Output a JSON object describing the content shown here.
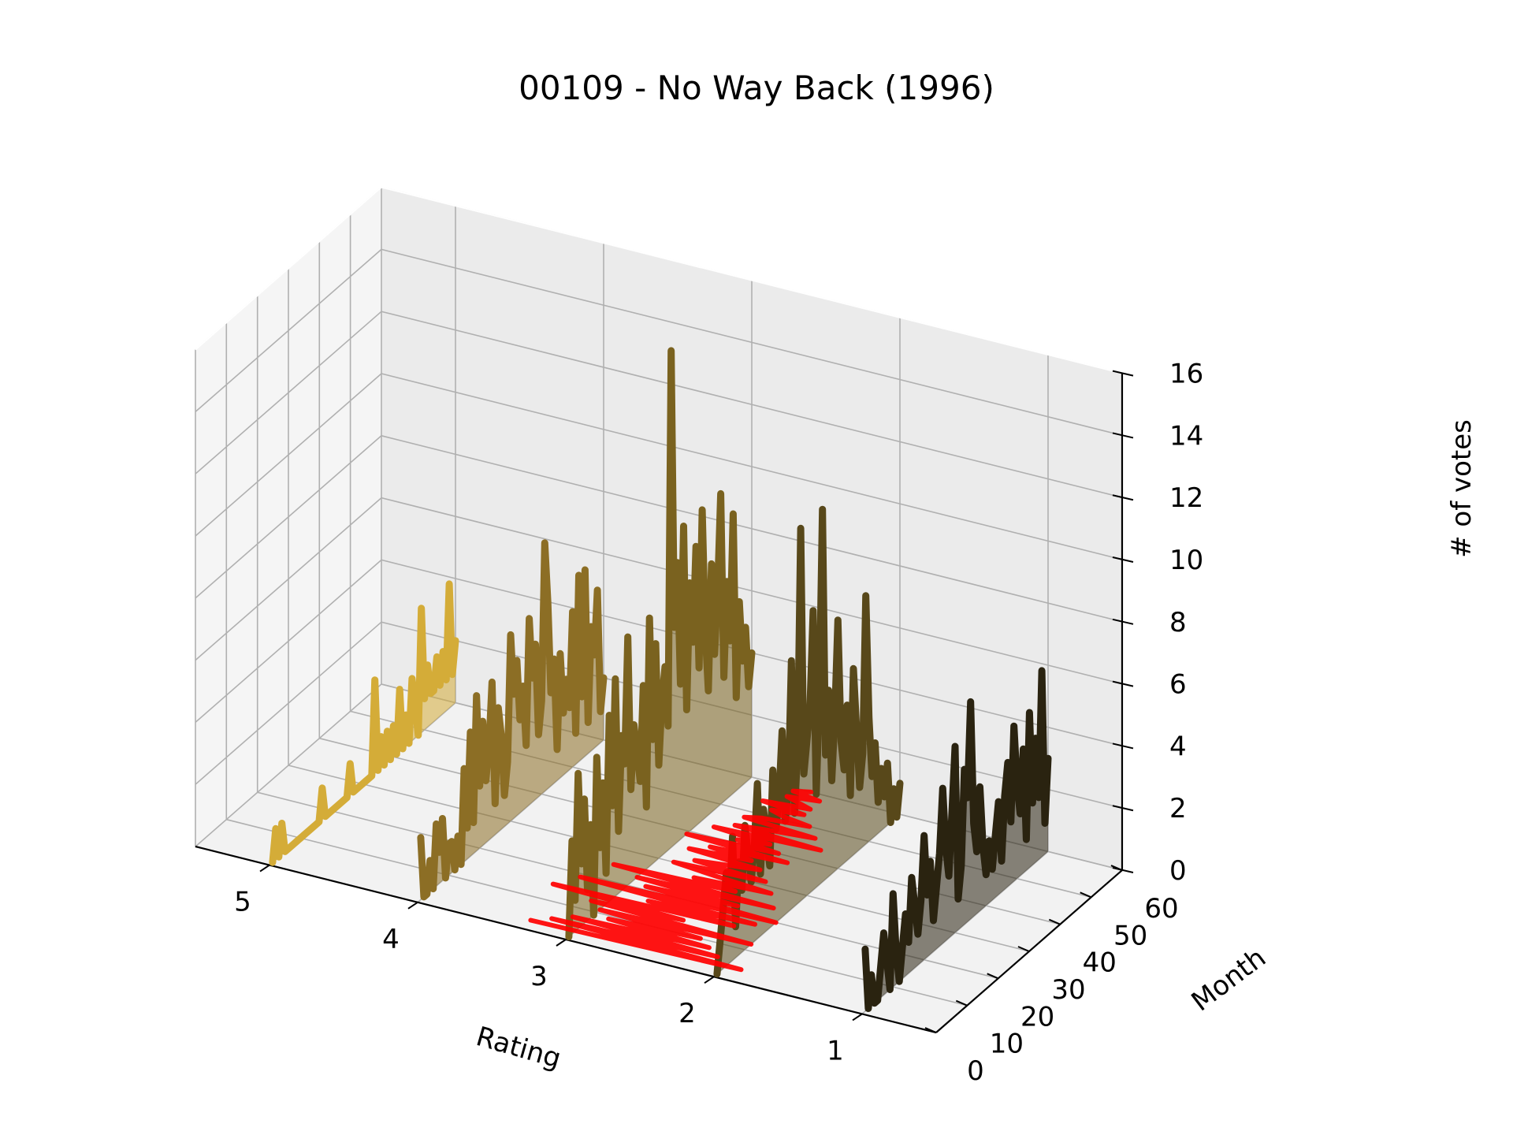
{
  "chart_data": {
    "type": "line",
    "title": "00109 - No Way Back (1996)",
    "xlabel": "Rating",
    "ylabel": "Month",
    "zlabel": "# of votes",
    "x_ticks": [
      "5",
      "4",
      "3",
      "2",
      "1"
    ],
    "y_ticks": [
      "0",
      "10",
      "20",
      "30",
      "40",
      "50",
      "60"
    ],
    "z_ticks": [
      "0",
      "2",
      "4",
      "6",
      "8",
      "10",
      "12",
      "14",
      "16"
    ],
    "xlim": [
      0.5,
      5.5
    ],
    "ylim": [
      0,
      60
    ],
    "zlim": [
      0,
      16
    ],
    "grid": true,
    "series": [
      {
        "rating": 5,
        "color": "#d4ac38",
        "months": [
          1,
          2,
          3,
          4,
          5,
          6,
          7,
          8,
          9,
          10,
          11,
          12,
          13,
          14,
          15,
          16,
          17,
          18,
          19,
          20,
          21,
          22,
          23,
          24,
          25,
          26,
          27,
          28,
          29,
          30,
          31,
          32,
          33,
          34,
          35,
          36,
          37,
          38,
          39,
          40,
          41,
          42,
          43,
          44,
          45,
          46,
          47,
          48,
          49,
          50,
          51,
          52,
          53,
          54,
          55,
          56,
          57,
          58,
          59,
          60
        ],
        "values": [
          0,
          1,
          0,
          1,
          0,
          0,
          0,
          0,
          0,
          0,
          0,
          0,
          0,
          0,
          0,
          0,
          1,
          0,
          0,
          0,
          0,
          0,
          0,
          0,
          0,
          1,
          0,
          0,
          0,
          0,
          0,
          0,
          0,
          3,
          0,
          1,
          0,
          1,
          0,
          1,
          0,
          2,
          0,
          1,
          0,
          2,
          1,
          0,
          4,
          1,
          2,
          1,
          1,
          2,
          1,
          2,
          1,
          4,
          1,
          2
        ]
      },
      {
        "rating": 4,
        "color": "#8c6e25",
        "months": [
          1,
          2,
          3,
          4,
          5,
          6,
          7,
          8,
          9,
          10,
          11,
          12,
          13,
          14,
          15,
          16,
          17,
          18,
          19,
          20,
          21,
          22,
          23,
          24,
          25,
          26,
          27,
          28,
          29,
          30,
          31,
          32,
          33,
          34,
          35,
          36,
          37,
          38,
          39,
          40,
          41,
          42,
          43,
          44,
          45,
          46,
          47,
          48,
          49,
          50,
          51,
          52,
          53,
          54,
          55,
          56,
          57,
          58,
          59,
          60
        ],
        "values": [
          2,
          0,
          0,
          1,
          0,
          2,
          1,
          2,
          0,
          1,
          1,
          0,
          1,
          0,
          3,
          1,
          4,
          1,
          5,
          2,
          4,
          2,
          3,
          5,
          1,
          4,
          3,
          1,
          2,
          6,
          4,
          5,
          3,
          4,
          2,
          6,
          4,
          5,
          2,
          3,
          8,
          6,
          3,
          4,
          1,
          4,
          2,
          3,
          2,
          5,
          1,
          6,
          2,
          6,
          1,
          4,
          3,
          5,
          1,
          2
        ]
      },
      {
        "rating": 3,
        "color": "#7a621f",
        "months": [
          1,
          2,
          3,
          4,
          5,
          6,
          7,
          8,
          9,
          10,
          11,
          12,
          13,
          14,
          15,
          16,
          17,
          18,
          19,
          20,
          21,
          22,
          23,
          24,
          25,
          26,
          27,
          28,
          29,
          30,
          31,
          32,
          33,
          34,
          35,
          36,
          37,
          38,
          39,
          40,
          41,
          42,
          43,
          44,
          45,
          46,
          47,
          48,
          49,
          50,
          51,
          52,
          53,
          54,
          55,
          56,
          57,
          58,
          59,
          60
        ],
        "values": [
          0,
          3,
          1,
          5,
          2,
          4,
          1,
          3,
          0,
          5,
          2,
          4,
          1,
          6,
          3,
          7,
          2,
          5,
          4,
          8,
          3,
          5,
          4,
          3,
          6,
          2,
          8,
          4,
          7,
          3,
          5,
          6,
          4,
          16,
          7,
          9,
          5,
          10,
          4,
          8,
          6,
          9,
          5,
          10,
          6,
          4,
          8,
          5,
          7,
          10,
          4,
          7,
          5,
          9,
          3,
          6,
          4,
          5,
          3,
          4
        ]
      },
      {
        "rating": 2,
        "color": "#58481a",
        "months": [
          1,
          2,
          3,
          4,
          5,
          6,
          7,
          8,
          9,
          10,
          11,
          12,
          13,
          14,
          15,
          16,
          17,
          18,
          19,
          20,
          21,
          22,
          23,
          24,
          25,
          26,
          27,
          28,
          29,
          30,
          31,
          32,
          33,
          34,
          35,
          36,
          37,
          38,
          39,
          40,
          41,
          42,
          43,
          44,
          45,
          46,
          47,
          48,
          49,
          50,
          51,
          52,
          53,
          54,
          55,
          56,
          57,
          58,
          59,
          60
        ],
        "values": [
          0,
          1,
          2,
          3,
          2,
          4,
          1,
          3,
          2,
          4,
          3,
          2,
          3,
          5,
          2,
          4,
          3,
          2,
          5,
          3,
          4,
          6,
          3,
          4,
          8,
          3,
          5,
          12,
          4,
          5,
          6,
          9,
          3,
          6,
          12,
          4,
          6,
          3,
          5,
          8,
          4,
          3,
          5,
          2,
          6,
          4,
          2,
          3,
          8,
          4,
          2,
          3,
          1,
          2,
          1,
          2,
          0,
          1,
          0,
          1
        ]
      },
      {
        "rating": 1,
        "color": "#2a2310",
        "months": [
          1,
          2,
          3,
          4,
          5,
          6,
          7,
          8,
          9,
          10,
          11,
          12,
          13,
          14,
          15,
          16,
          17,
          18,
          19,
          20,
          21,
          22,
          23,
          24,
          25,
          26,
          27,
          28,
          29,
          30,
          31,
          32,
          33,
          34,
          35,
          36,
          37,
          38,
          39,
          40,
          41,
          42,
          43,
          44,
          45,
          46,
          47,
          48,
          49,
          50,
          51,
          52,
          53,
          54,
          55,
          56,
          57,
          58,
          59,
          60
        ],
        "values": [
          2,
          0,
          1,
          0,
          0,
          1,
          2,
          1,
          0,
          3,
          1,
          0,
          1,
          2,
          1,
          3,
          2,
          1,
          2,
          4,
          2,
          3,
          1,
          2,
          3,
          5,
          3,
          2,
          4,
          6,
          1,
          2,
          5,
          4,
          7,
          3,
          2,
          4,
          2,
          1,
          2,
          1,
          2,
          3,
          1,
          3,
          4,
          2,
          5,
          3,
          2,
          4,
          1,
          5,
          2,
          4,
          2,
          6,
          1,
          3
        ]
      },
      {
        "rating": 0,
        "name": "",
        "color": "#ff0000",
        "note_free": true,
        "months": [
          3,
          4,
          5,
          6,
          7,
          8,
          9,
          10,
          11,
          12,
          13,
          14,
          15,
          16,
          17,
          18,
          19,
          20,
          21,
          22,
          23,
          24,
          25,
          26,
          27,
          28,
          29,
          30,
          31,
          32,
          33,
          34,
          35,
          36,
          37,
          38,
          39,
          40,
          41,
          42,
          43,
          44,
          45,
          46,
          47,
          48,
          49,
          50,
          51,
          52,
          53,
          54,
          55,
          56,
          57,
          58,
          59,
          60
        ],
        "ratings": [
          3.3,
          1.9,
          3.2,
          2.1,
          3.1,
          2.2,
          2.9,
          2.3,
          3.0,
          2.0,
          3.1,
          2.5,
          3.4,
          2.2,
          2.8,
          2.1,
          3.3,
          2.0,
          2.9,
          2.3,
          3.0,
          2.1,
          3.2,
          2.4,
          2.7,
          2.2,
          2.6,
          2.9,
          2.3,
          2.8,
          2.6,
          2.4,
          2.9,
          2.5,
          2.8,
          2.3,
          3.0,
          2.4,
          2.7,
          2.5,
          2.9,
          2.2,
          2.8,
          2.6,
          2.3,
          2.8,
          2.7,
          2.4,
          2.6,
          2.7,
          2.5,
          2.8,
          2.5,
          2.6,
          2.7,
          2.5,
          2.7,
          2.6
        ]
      }
    ]
  }
}
